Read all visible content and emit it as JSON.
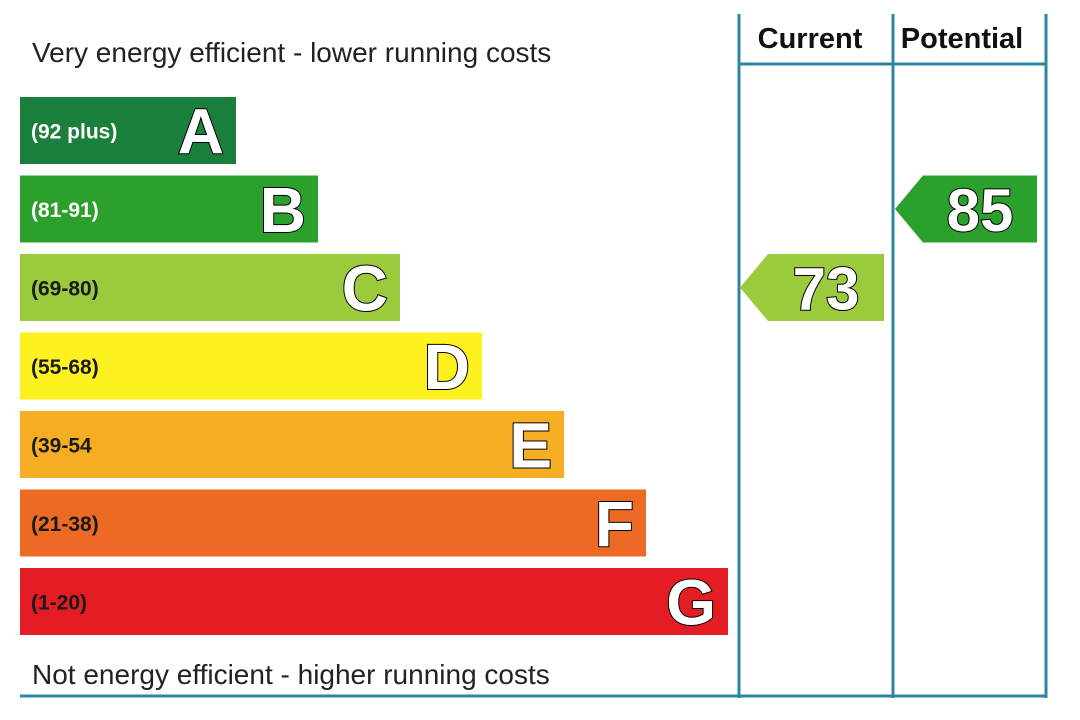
{
  "header": {
    "top_caption": "Very energy efficient - lower running costs",
    "bottom_caption": "Not energy efficient - higher running costs",
    "current_label": "Current",
    "potential_label": "Potential"
  },
  "chart_data": {
    "type": "bar",
    "title": "",
    "categories": [
      "A",
      "B",
      "C",
      "D",
      "E",
      "F",
      "G"
    ],
    "bands": [
      {
        "letter": "A",
        "range": "(92 plus)",
        "color": "#1a7f3c"
      },
      {
        "letter": "B",
        "range": "(81-91)",
        "color": "#2ca02c"
      },
      {
        "letter": "C",
        "range": "(69-80)",
        "color": "#9bcb3c"
      },
      {
        "letter": "D",
        "range": "(55-68)",
        "color": "#fff01f"
      },
      {
        "letter": "E",
        "range": "(39-54",
        "color": "#f5ae23"
      },
      {
        "letter": "F",
        "range": "(21-38)",
        "color": "#ec6a24"
      },
      {
        "letter": "G",
        "range": "(1-20)",
        "color": "#e31d23"
      }
    ],
    "series": [
      {
        "name": "Current",
        "value": 73,
        "band": "C",
        "color": "#9bcb3c"
      },
      {
        "name": "Potential",
        "value": 85,
        "band": "B",
        "color": "#2ca02c"
      }
    ]
  }
}
